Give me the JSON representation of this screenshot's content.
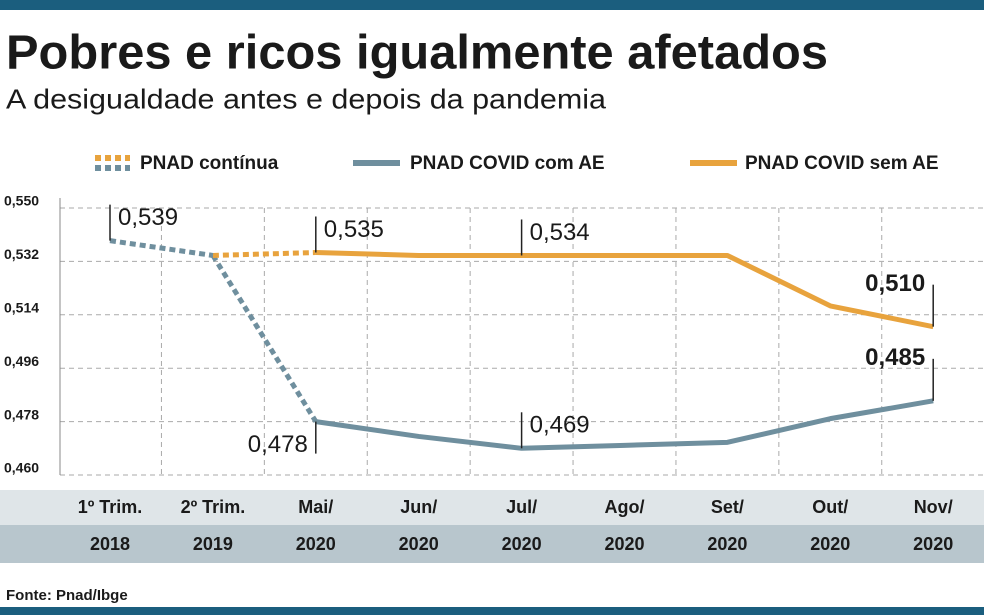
{
  "chart_data": {
    "type": "line",
    "title": "Pobres e ricos igualmente afetados",
    "subtitle": "A desigualdade antes e depois da pandemia",
    "source": "Fonte: Pnad/Ibge",
    "categories": [
      [
        "1º Trim.",
        "2018"
      ],
      [
        "2º Trim.",
        "2019"
      ],
      [
        "Mai/",
        "2020"
      ],
      [
        "Jun/",
        "2020"
      ],
      [
        "Jul/",
        "2020"
      ],
      [
        "Ago/",
        "2020"
      ],
      [
        "Set/",
        "2020"
      ],
      [
        "Out/",
        "2020"
      ],
      [
        "Nov/",
        "2020"
      ]
    ],
    "ylim": [
      0.46,
      0.55
    ],
    "yticks": [
      {
        "value": 0.55,
        "label": "0,550"
      },
      {
        "value": 0.532,
        "label": "0,532"
      },
      {
        "value": 0.514,
        "label": "0,514"
      },
      {
        "value": 0.496,
        "label": "0,496"
      },
      {
        "value": 0.478,
        "label": "0,478"
      },
      {
        "value": 0.46,
        "label": "0,460"
      }
    ],
    "grid": true,
    "series": [
      {
        "name": "PNAD contínua",
        "color": [
          "#e8a33d",
          "#6f8f9e"
        ],
        "style": "dotted",
        "values": [
          0.539,
          0.534,
          null,
          null,
          null,
          null,
          null,
          null,
          null
        ],
        "value_labels": [
          "0,539",
          null,
          null,
          null,
          null,
          null,
          null,
          null,
          null
        ]
      },
      {
        "name": "PNAD COVID com AE",
        "color": "#6f8f9e",
        "values": [
          null,
          null,
          0.478,
          0.473,
          0.469,
          0.47,
          0.471,
          0.479,
          0.485
        ],
        "value_labels": [
          null,
          null,
          "0,478",
          null,
          "0,469",
          null,
          null,
          null,
          "0,485"
        ]
      },
      {
        "name": "PNAD COVID sem AE",
        "color": "#e8a33d",
        "values": [
          null,
          null,
          0.535,
          0.534,
          0.534,
          0.534,
          0.534,
          0.517,
          0.51
        ],
        "value_labels": [
          null,
          null,
          "0,535",
          null,
          "0,534",
          null,
          null,
          null,
          "0,510"
        ]
      }
    ]
  }
}
